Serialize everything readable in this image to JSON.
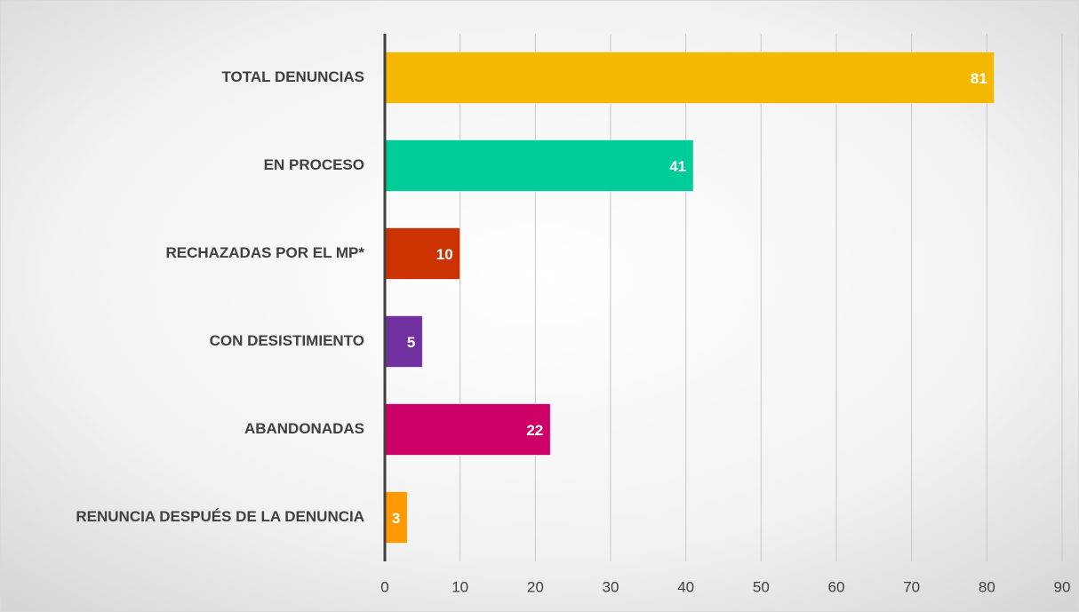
{
  "chart_data": {
    "type": "bar",
    "orientation": "horizontal",
    "categories": [
      "TOTAL DENUNCIAS",
      "EN PROCESO",
      "RECHAZADAS POR EL MP*",
      "CON DESISTIMIENTO",
      "ABANDONADAS",
      "RENUNCIA DESPUÉS DE LA DENUNCIA"
    ],
    "values": [
      81,
      41,
      10,
      5,
      22,
      3
    ],
    "colors": [
      "#f5b800",
      "#00cc99",
      "#cc3300",
      "#7030a0",
      "#cc0066",
      "#ff9900"
    ],
    "xlim": [
      0,
      90
    ],
    "xticks": [
      0,
      10,
      20,
      30,
      40,
      50,
      60,
      70,
      80,
      90
    ],
    "grid": true
  }
}
